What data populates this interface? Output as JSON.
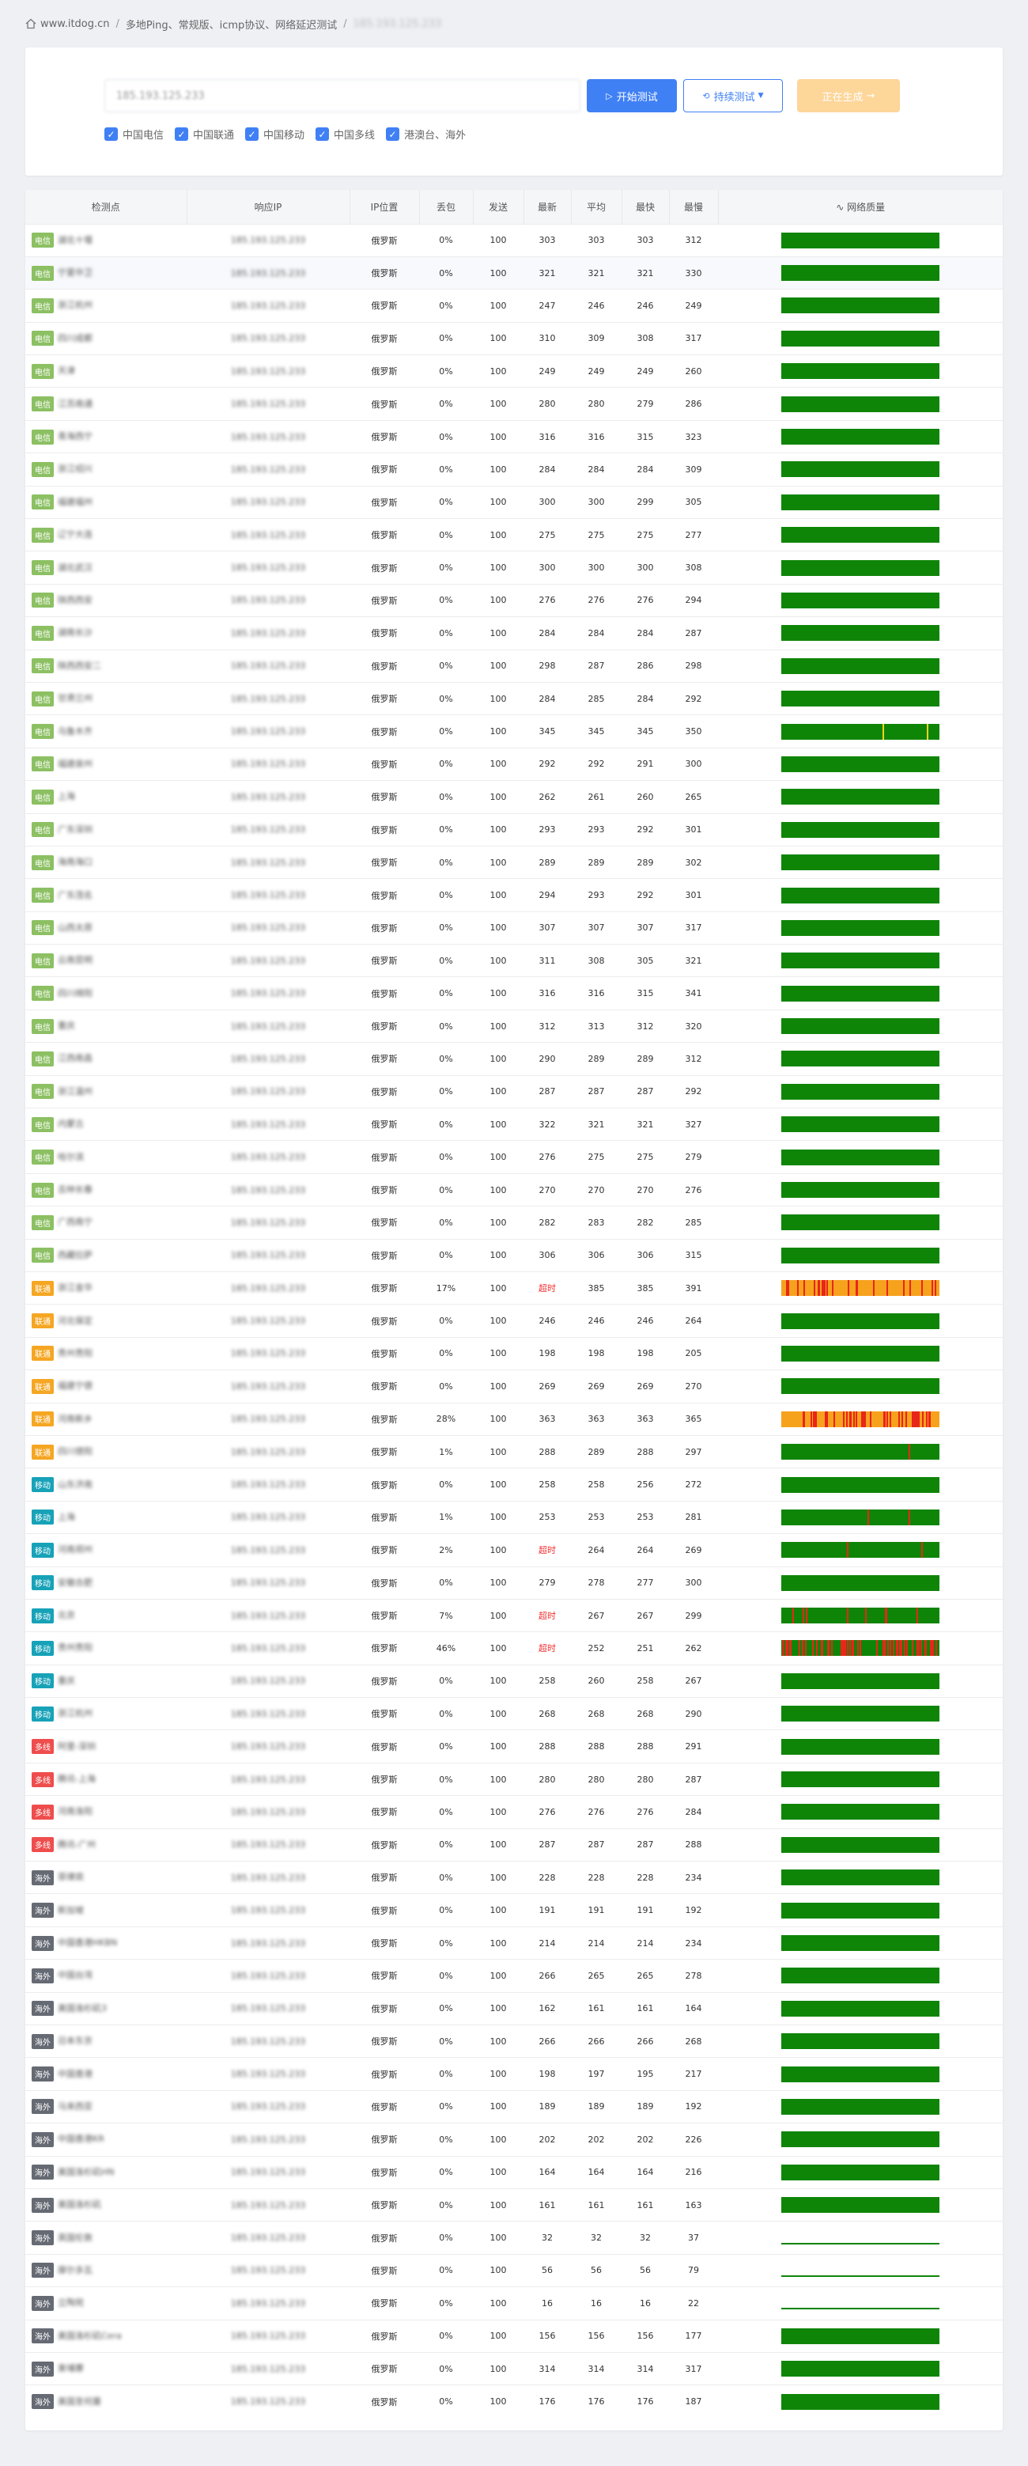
{
  "breadcrumb": {
    "site": "www.itdog.cn",
    "crumb1": "多地Ping、常规版、icmp协议、网络延迟测试",
    "crumb2": "185.193.125.233"
  },
  "search": {
    "value": "185.193.125.233",
    "start_label": "开始测试",
    "continuous_label": "持续测试",
    "generating_label": "正在生成",
    "checks": [
      "中国电信",
      "中国联通",
      "中国移动",
      "中国多线",
      "港澳台、海外"
    ]
  },
  "table": {
    "headers": [
      "检测点",
      "响应IP",
      "IP位置",
      "丢包",
      "发送",
      "最新",
      "平均",
      "最快",
      "最慢",
      "网络质量"
    ],
    "ip": "185.193.125.233",
    "rows": [
      {
        "tag": "电信",
        "cls": "ct",
        "node": "湖北十堰",
        "loc": "俄罗斯",
        "loss": "0%",
        "sent": "100",
        "last": "303",
        "avg": "303",
        "best": "303",
        "worst": "312",
        "q": "g"
      },
      {
        "tag": "电信",
        "cls": "ct",
        "node": "宁夏中卫",
        "loc": "俄罗斯",
        "loss": "0%",
        "sent": "100",
        "last": "321",
        "avg": "321",
        "best": "321",
        "worst": "330",
        "q": "g"
      },
      {
        "tag": "电信",
        "cls": "ct",
        "node": "浙江杭州",
        "loc": "俄罗斯",
        "loss": "0%",
        "sent": "100",
        "last": "247",
        "avg": "246",
        "best": "246",
        "worst": "249",
        "q": "g"
      },
      {
        "tag": "电信",
        "cls": "ct",
        "node": "四川成都",
        "loc": "俄罗斯",
        "loss": "0%",
        "sent": "100",
        "last": "310",
        "avg": "309",
        "best": "308",
        "worst": "317",
        "q": "g"
      },
      {
        "tag": "电信",
        "cls": "ct",
        "node": "天津",
        "loc": "俄罗斯",
        "loss": "0%",
        "sent": "100",
        "last": "249",
        "avg": "249",
        "best": "249",
        "worst": "260",
        "q": "g"
      },
      {
        "tag": "电信",
        "cls": "ct",
        "node": "江苏南通",
        "loc": "俄罗斯",
        "loss": "0%",
        "sent": "100",
        "last": "280",
        "avg": "280",
        "best": "279",
        "worst": "286",
        "q": "g"
      },
      {
        "tag": "电信",
        "cls": "ct",
        "node": "青海西宁",
        "loc": "俄罗斯",
        "loss": "0%",
        "sent": "100",
        "last": "316",
        "avg": "316",
        "best": "315",
        "worst": "323",
        "q": "g"
      },
      {
        "tag": "电信",
        "cls": "ct",
        "node": "浙江绍兴",
        "loc": "俄罗斯",
        "loss": "0%",
        "sent": "100",
        "last": "284",
        "avg": "284",
        "best": "284",
        "worst": "309",
        "q": "g"
      },
      {
        "tag": "电信",
        "cls": "ct",
        "node": "福建福州",
        "loc": "俄罗斯",
        "loss": "0%",
        "sent": "100",
        "last": "300",
        "avg": "300",
        "best": "299",
        "worst": "305",
        "q": "g"
      },
      {
        "tag": "电信",
        "cls": "ct",
        "node": "辽宁大连",
        "loc": "俄罗斯",
        "loss": "0%",
        "sent": "100",
        "last": "275",
        "avg": "275",
        "best": "275",
        "worst": "277",
        "q": "g"
      },
      {
        "tag": "电信",
        "cls": "ct",
        "node": "湖北武汉",
        "loc": "俄罗斯",
        "loss": "0%",
        "sent": "100",
        "last": "300",
        "avg": "300",
        "best": "300",
        "worst": "308",
        "q": "g"
      },
      {
        "tag": "电信",
        "cls": "ct",
        "node": "陕西西安",
        "loc": "俄罗斯",
        "loss": "0%",
        "sent": "100",
        "last": "276",
        "avg": "276",
        "best": "276",
        "worst": "294",
        "q": "g"
      },
      {
        "tag": "电信",
        "cls": "ct",
        "node": "湖南长沙",
        "loc": "俄罗斯",
        "loss": "0%",
        "sent": "100",
        "last": "284",
        "avg": "284",
        "best": "284",
        "worst": "287",
        "q": "g"
      },
      {
        "tag": "电信",
        "cls": "ct",
        "node": "陕西西安二",
        "loc": "俄罗斯",
        "loss": "0%",
        "sent": "100",
        "last": "298",
        "avg": "287",
        "best": "286",
        "worst": "298",
        "q": "g"
      },
      {
        "tag": "电信",
        "cls": "ct",
        "node": "甘肃兰州",
        "loc": "俄罗斯",
        "loss": "0%",
        "sent": "100",
        "last": "284",
        "avg": "285",
        "best": "284",
        "worst": "292",
        "q": "g"
      },
      {
        "tag": "电信",
        "cls": "ct",
        "node": "乌鲁木齐",
        "loc": "俄罗斯",
        "loss": "0%",
        "sent": "100",
        "last": "345",
        "avg": "345",
        "best": "345",
        "worst": "350",
        "q": "gy"
      },
      {
        "tag": "电信",
        "cls": "ct",
        "node": "福建泉州",
        "loc": "俄罗斯",
        "loss": "0%",
        "sent": "100",
        "last": "292",
        "avg": "292",
        "best": "291",
        "worst": "300",
        "q": "g"
      },
      {
        "tag": "电信",
        "cls": "ct",
        "node": "上海",
        "loc": "俄罗斯",
        "loss": "0%",
        "sent": "100",
        "last": "262",
        "avg": "261",
        "best": "260",
        "worst": "265",
        "q": "g"
      },
      {
        "tag": "电信",
        "cls": "ct",
        "node": "广东深圳",
        "loc": "俄罗斯",
        "loss": "0%",
        "sent": "100",
        "last": "293",
        "avg": "293",
        "best": "292",
        "worst": "301",
        "q": "g"
      },
      {
        "tag": "电信",
        "cls": "ct",
        "node": "海南海口",
        "loc": "俄罗斯",
        "loss": "0%",
        "sent": "100",
        "last": "289",
        "avg": "289",
        "best": "289",
        "worst": "302",
        "q": "g"
      },
      {
        "tag": "电信",
        "cls": "ct",
        "node": "广东茂名",
        "loc": "俄罗斯",
        "loss": "0%",
        "sent": "100",
        "last": "294",
        "avg": "293",
        "best": "292",
        "worst": "301",
        "q": "g"
      },
      {
        "tag": "电信",
        "cls": "ct",
        "node": "山西太原",
        "loc": "俄罗斯",
        "loss": "0%",
        "sent": "100",
        "last": "307",
        "avg": "307",
        "best": "307",
        "worst": "317",
        "q": "g"
      },
      {
        "tag": "电信",
        "cls": "ct",
        "node": "云南昆明",
        "loc": "俄罗斯",
        "loss": "0%",
        "sent": "100",
        "last": "311",
        "avg": "308",
        "best": "305",
        "worst": "321",
        "q": "g"
      },
      {
        "tag": "电信",
        "cls": "ct",
        "node": "四川绵阳",
        "loc": "俄罗斯",
        "loss": "0%",
        "sent": "100",
        "last": "316",
        "avg": "316",
        "best": "315",
        "worst": "341",
        "q": "g"
      },
      {
        "tag": "电信",
        "cls": "ct",
        "node": "重庆",
        "loc": "俄罗斯",
        "loss": "0%",
        "sent": "100",
        "last": "312",
        "avg": "313",
        "best": "312",
        "worst": "320",
        "q": "g"
      },
      {
        "tag": "电信",
        "cls": "ct",
        "node": "江西南昌",
        "loc": "俄罗斯",
        "loss": "0%",
        "sent": "100",
        "last": "290",
        "avg": "289",
        "best": "289",
        "worst": "312",
        "q": "g"
      },
      {
        "tag": "电信",
        "cls": "ct",
        "node": "浙江温州",
        "loc": "俄罗斯",
        "loss": "0%",
        "sent": "100",
        "last": "287",
        "avg": "287",
        "best": "287",
        "worst": "292",
        "q": "g"
      },
      {
        "tag": "电信",
        "cls": "ct",
        "node": "内蒙古",
        "loc": "俄罗斯",
        "loss": "0%",
        "sent": "100",
        "last": "322",
        "avg": "321",
        "best": "321",
        "worst": "327",
        "q": "g"
      },
      {
        "tag": "电信",
        "cls": "ct",
        "node": "哈尔滨",
        "loc": "俄罗斯",
        "loss": "0%",
        "sent": "100",
        "last": "276",
        "avg": "275",
        "best": "275",
        "worst": "279",
        "q": "g"
      },
      {
        "tag": "电信",
        "cls": "ct",
        "node": "吉林长春",
        "loc": "俄罗斯",
        "loss": "0%",
        "sent": "100",
        "last": "270",
        "avg": "270",
        "best": "270",
        "worst": "276",
        "q": "g"
      },
      {
        "tag": "电信",
        "cls": "ct",
        "node": "广西南宁",
        "loc": "俄罗斯",
        "loss": "0%",
        "sent": "100",
        "last": "282",
        "avg": "283",
        "best": "282",
        "worst": "285",
        "q": "g"
      },
      {
        "tag": "电信",
        "cls": "ct",
        "node": "西藏拉萨",
        "loc": "俄罗斯",
        "loss": "0%",
        "sent": "100",
        "last": "306",
        "avg": "306",
        "best": "306",
        "worst": "315",
        "q": "g"
      },
      {
        "tag": "联通",
        "cls": "cu",
        "node": "浙江金华",
        "loc": "俄罗斯",
        "loss": "17%",
        "sent": "100",
        "last": "超时",
        "avg": "385",
        "best": "385",
        "worst": "391",
        "q": "o17"
      },
      {
        "tag": "联通",
        "cls": "cu",
        "node": "河北保定",
        "loc": "俄罗斯",
        "loss": "0%",
        "sent": "100",
        "last": "246",
        "avg": "246",
        "best": "246",
        "worst": "264",
        "q": "g"
      },
      {
        "tag": "联通",
        "cls": "cu",
        "node": "贵州贵阳",
        "loc": "俄罗斯",
        "loss": "0%",
        "sent": "100",
        "last": "198",
        "avg": "198",
        "best": "198",
        "worst": "205",
        "q": "g"
      },
      {
        "tag": "联通",
        "cls": "cu",
        "node": "福建宁德",
        "loc": "俄罗斯",
        "loss": "0%",
        "sent": "100",
        "last": "269",
        "avg": "269",
        "best": "269",
        "worst": "270",
        "q": "g"
      },
      {
        "tag": "联通",
        "cls": "cu",
        "node": "河南新乡",
        "loc": "俄罗斯",
        "loss": "28%",
        "sent": "100",
        "last": "363",
        "avg": "363",
        "best": "363",
        "worst": "365",
        "q": "o28"
      },
      {
        "tag": "联通",
        "cls": "cu",
        "node": "四川德阳",
        "loc": "俄罗斯",
        "loss": "1%",
        "sent": "100",
        "last": "288",
        "avg": "289",
        "best": "288",
        "worst": "297",
        "q": "g1"
      },
      {
        "tag": "移动",
        "cls": "cm",
        "node": "山东济南",
        "loc": "俄罗斯",
        "loss": "0%",
        "sent": "100",
        "last": "258",
        "avg": "258",
        "best": "256",
        "worst": "272",
        "q": "g"
      },
      {
        "tag": "移动",
        "cls": "cm",
        "node": "上海",
        "loc": "俄罗斯",
        "loss": "1%",
        "sent": "100",
        "last": "253",
        "avg": "253",
        "best": "253",
        "worst": "281",
        "q": "g1b"
      },
      {
        "tag": "移动",
        "cls": "cm",
        "node": "河南郑州",
        "loc": "俄罗斯",
        "loss": "2%",
        "sent": "100",
        "last": "超时",
        "avg": "264",
        "best": "264",
        "worst": "269",
        "q": "g2"
      },
      {
        "tag": "移动",
        "cls": "cm",
        "node": "安徽合肥",
        "loc": "俄罗斯",
        "loss": "0%",
        "sent": "100",
        "last": "279",
        "avg": "278",
        "best": "277",
        "worst": "300",
        "q": "g"
      },
      {
        "tag": "移动",
        "cls": "cm",
        "node": "北京",
        "loc": "俄罗斯",
        "loss": "7%",
        "sent": "100",
        "last": "超时",
        "avg": "267",
        "best": "267",
        "worst": "299",
        "q": "g7"
      },
      {
        "tag": "移动",
        "cls": "cm",
        "node": "贵州贵阳",
        "loc": "俄罗斯",
        "loss": "46%",
        "sent": "100",
        "last": "超时",
        "avg": "252",
        "best": "251",
        "worst": "262",
        "q": "g46"
      },
      {
        "tag": "移动",
        "cls": "cm",
        "node": "重庆",
        "loc": "俄罗斯",
        "loss": "0%",
        "sent": "100",
        "last": "258",
        "avg": "260",
        "best": "258",
        "worst": "267",
        "q": "g"
      },
      {
        "tag": "移动",
        "cls": "cm",
        "node": "浙江杭州",
        "loc": "俄罗斯",
        "loss": "0%",
        "sent": "100",
        "last": "268",
        "avg": "268",
        "best": "268",
        "worst": "290",
        "q": "g"
      },
      {
        "tag": "多线",
        "cls": "ml",
        "node": "阿里-深圳",
        "loc": "俄罗斯",
        "loss": "0%",
        "sent": "100",
        "last": "288",
        "avg": "288",
        "best": "288",
        "worst": "291",
        "q": "g"
      },
      {
        "tag": "多线",
        "cls": "ml",
        "node": "腾讯-上海",
        "loc": "俄罗斯",
        "loss": "0%",
        "sent": "100",
        "last": "280",
        "avg": "280",
        "best": "280",
        "worst": "287",
        "q": "g"
      },
      {
        "tag": "多线",
        "cls": "ml",
        "node": "河南洛阳",
        "loc": "俄罗斯",
        "loss": "0%",
        "sent": "100",
        "last": "276",
        "avg": "276",
        "best": "276",
        "worst": "284",
        "q": "g"
      },
      {
        "tag": "多线",
        "cls": "ml",
        "node": "腾讯-广州",
        "loc": "俄罗斯",
        "loss": "0%",
        "sent": "100",
        "last": "287",
        "avg": "287",
        "best": "287",
        "worst": "288",
        "q": "g"
      },
      {
        "tag": "海外",
        "cls": "os",
        "node": "菲律宾",
        "loc": "俄罗斯",
        "loss": "0%",
        "sent": "100",
        "last": "228",
        "avg": "228",
        "best": "228",
        "worst": "234",
        "q": "g"
      },
      {
        "tag": "海外",
        "cls": "os",
        "node": "新加坡",
        "loc": "俄罗斯",
        "loss": "0%",
        "sent": "100",
        "last": "191",
        "avg": "191",
        "best": "191",
        "worst": "192",
        "q": "g"
      },
      {
        "tag": "海外",
        "cls": "os",
        "node": "中国香港HKBN",
        "loc": "俄罗斯",
        "loss": "0%",
        "sent": "100",
        "last": "214",
        "avg": "214",
        "best": "214",
        "worst": "234",
        "q": "g"
      },
      {
        "tag": "海外",
        "cls": "os",
        "node": "中国台湾",
        "loc": "俄罗斯",
        "loss": "0%",
        "sent": "100",
        "last": "266",
        "avg": "265",
        "best": "265",
        "worst": "278",
        "q": "g"
      },
      {
        "tag": "海外",
        "cls": "os",
        "node": "美国洛杉矶3",
        "loc": "俄罗斯",
        "loss": "0%",
        "sent": "100",
        "last": "162",
        "avg": "161",
        "best": "161",
        "worst": "164",
        "q": "g"
      },
      {
        "tag": "海外",
        "cls": "os",
        "node": "日本东京",
        "loc": "俄罗斯",
        "loss": "0%",
        "sent": "100",
        "last": "266",
        "avg": "266",
        "best": "266",
        "worst": "268",
        "q": "g"
      },
      {
        "tag": "海外",
        "cls": "os",
        "node": "中国香港",
        "loc": "俄罗斯",
        "loss": "0%",
        "sent": "100",
        "last": "198",
        "avg": "197",
        "best": "195",
        "worst": "217",
        "q": "g"
      },
      {
        "tag": "海外",
        "cls": "os",
        "node": "马来西亚",
        "loc": "俄罗斯",
        "loss": "0%",
        "sent": "100",
        "last": "189",
        "avg": "189",
        "best": "189",
        "worst": "192",
        "q": "g"
      },
      {
        "tag": "海外",
        "cls": "os",
        "node": "中国香港KR",
        "loc": "俄罗斯",
        "loss": "0%",
        "sent": "100",
        "last": "202",
        "avg": "202",
        "best": "202",
        "worst": "226",
        "q": "g"
      },
      {
        "tag": "海外",
        "cls": "os",
        "node": "美国洛杉矶HN",
        "loc": "俄罗斯",
        "loss": "0%",
        "sent": "100",
        "last": "164",
        "avg": "164",
        "best": "164",
        "worst": "216",
        "q": "g"
      },
      {
        "tag": "海外",
        "cls": "os",
        "node": "美国洛杉矶",
        "loc": "俄罗斯",
        "loss": "0%",
        "sent": "100",
        "last": "161",
        "avg": "161",
        "best": "161",
        "worst": "163",
        "q": "g"
      },
      {
        "tag": "海外",
        "cls": "os",
        "node": "英国伦敦",
        "loc": "俄罗斯",
        "loss": "0%",
        "sent": "100",
        "last": "32",
        "avg": "32",
        "best": "32",
        "worst": "37",
        "q": "flat"
      },
      {
        "tag": "海外",
        "cls": "os",
        "node": "摩尔多瓦",
        "loc": "俄罗斯",
        "loss": "0%",
        "sent": "100",
        "last": "56",
        "avg": "56",
        "best": "56",
        "worst": "79",
        "q": "flat"
      },
      {
        "tag": "海外",
        "cls": "os",
        "node": "立陶宛",
        "loc": "俄罗斯",
        "loss": "0%",
        "sent": "100",
        "last": "16",
        "avg": "16",
        "best": "16",
        "worst": "22",
        "q": "flat"
      },
      {
        "tag": "海外",
        "cls": "os",
        "node": "美国洛杉矶Cera",
        "loc": "俄罗斯",
        "loss": "0%",
        "sent": "100",
        "last": "156",
        "avg": "156",
        "best": "156",
        "worst": "177",
        "q": "g"
      },
      {
        "tag": "海外",
        "cls": "os",
        "node": "柬埔寨",
        "loc": "俄罗斯",
        "loss": "0%",
        "sent": "100",
        "last": "314",
        "avg": "314",
        "best": "314",
        "worst": "317",
        "q": "g"
      },
      {
        "tag": "海外",
        "cls": "os",
        "node": "美国圣何塞",
        "loc": "俄罗斯",
        "loss": "0%",
        "sent": "100",
        "last": "176",
        "avg": "176",
        "best": "176",
        "worst": "187",
        "q": "g"
      }
    ]
  }
}
